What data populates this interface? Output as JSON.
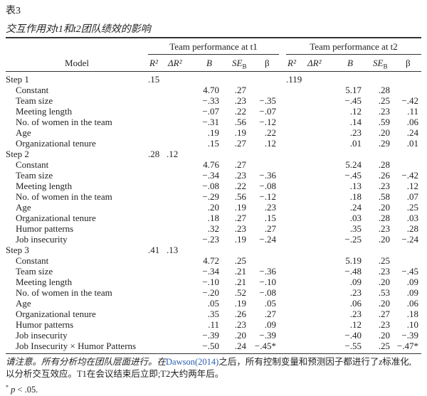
{
  "table_label": "表3",
  "table_title": "交互作用对t1和t2团队绩效的影响",
  "header": {
    "model": "Model",
    "group_t1": "Team performance at t1",
    "group_t2": "Team performance at t2",
    "cols": [
      "R²",
      "ΔR²",
      "B",
      "SE",
      "β"
    ],
    "se_sub": "B"
  },
  "rows": [
    {
      "label": "Step 1",
      "step": true,
      "t1": [
        ".15",
        "",
        "",
        "",
        ""
      ],
      "t2": [
        ".119",
        "",
        "",
        "",
        ""
      ]
    },
    {
      "label": "Constant",
      "t1": [
        "",
        "",
        "4.70",
        ".27",
        ""
      ],
      "t2": [
        "",
        "",
        "5.17",
        ".28",
        ""
      ]
    },
    {
      "label": "Team size",
      "t1": [
        "",
        "",
        "−.33",
        ".23",
        "−.35"
      ],
      "t2": [
        "",
        "",
        "−.45",
        ".25",
        "−.42"
      ]
    },
    {
      "label": "Meeting length",
      "t1": [
        "",
        "",
        "−.07",
        ".22",
        "−.07"
      ],
      "t2": [
        "",
        "",
        ".12",
        ".23",
        ".11"
      ]
    },
    {
      "label": "No. of women in the team",
      "t1": [
        "",
        "",
        "−.31",
        ".56",
        "−.12"
      ],
      "t2": [
        "",
        "",
        ".14",
        ".59",
        ".06"
      ]
    },
    {
      "label": "Age",
      "t1": [
        "",
        "",
        ".19",
        ".19",
        ".22"
      ],
      "t2": [
        "",
        "",
        ".23",
        ".20",
        ".24"
      ]
    },
    {
      "label": "Organizational tenure",
      "t1": [
        "",
        "",
        ".15",
        ".27",
        ".12"
      ],
      "t2": [
        "",
        "",
        ".01",
        ".29",
        ".01"
      ]
    },
    {
      "label": "Step 2",
      "step": true,
      "t1": [
        ".28",
        ".12",
        "",
        "",
        ""
      ],
      "t2": [
        "",
        "",
        "",
        "",
        ""
      ]
    },
    {
      "label": "Constant",
      "t1": [
        "",
        "",
        "4.76",
        ".27",
        ""
      ],
      "t2": [
        "",
        "",
        "5.24",
        ".28",
        ""
      ]
    },
    {
      "label": "Team size",
      "t1": [
        "",
        "",
        "−.34",
        ".23",
        "−.36"
      ],
      "t2": [
        "",
        "",
        "−.45",
        ".26",
        "−.42"
      ]
    },
    {
      "label": "Meeting length",
      "t1": [
        "",
        "",
        "−.08",
        ".22",
        "−.08"
      ],
      "t2": [
        "",
        "",
        ".13",
        ".23",
        ".12"
      ]
    },
    {
      "label": "No. of women in the team",
      "t1": [
        "",
        "",
        "−.29",
        ".56",
        "−.12"
      ],
      "t2": [
        "",
        "",
        ".18",
        ".58",
        ".07"
      ]
    },
    {
      "label": "Age",
      "t1": [
        "",
        "",
        ".20",
        ".19",
        ".23"
      ],
      "t2": [
        "",
        "",
        ".24",
        ".20",
        ".25"
      ]
    },
    {
      "label": "Organizational tenure",
      "t1": [
        "",
        "",
        ".18",
        ".27",
        ".15"
      ],
      "t2": [
        "",
        "",
        ".03",
        ".28",
        ".03"
      ]
    },
    {
      "label": "Humor patterns",
      "t1": [
        "",
        "",
        ".32",
        ".23",
        ".27"
      ],
      "t2": [
        "",
        "",
        ".35",
        ".23",
        ".28"
      ]
    },
    {
      "label": "Job insecurity",
      "t1": [
        "",
        "",
        "−.23",
        ".19",
        "−.24"
      ],
      "t2": [
        "",
        "",
        "−.25",
        ".20",
        "−.24"
      ]
    },
    {
      "label": "Step 3",
      "step": true,
      "t1": [
        ".41",
        ".13",
        "",
        "",
        ""
      ],
      "t2": [
        "",
        "",
        "",
        "",
        ""
      ]
    },
    {
      "label": "Constant",
      "t1": [
        "",
        "",
        "4.72",
        ".25",
        ""
      ],
      "t2": [
        "",
        "",
        "5.19",
        ".25",
        ""
      ]
    },
    {
      "label": "Team size",
      "t1": [
        "",
        "",
        "−.34",
        ".21",
        "−.36"
      ],
      "t2": [
        "",
        "",
        "−.48",
        ".23",
        "−.45"
      ]
    },
    {
      "label": "Meeting length",
      "t1": [
        "",
        "",
        "−.10",
        ".21",
        "−.10"
      ],
      "t2": [
        "",
        "",
        ".09",
        ".20",
        ".09"
      ]
    },
    {
      "label": "No. of women in the team",
      "t1": [
        "",
        "",
        "−.20",
        ".52",
        "−.08"
      ],
      "t2": [
        "",
        "",
        ".23",
        ".53",
        ".09"
      ]
    },
    {
      "label": "Age",
      "t1": [
        "",
        "",
        ".05",
        ".19",
        ".05"
      ],
      "t2": [
        "",
        "",
        ".06",
        ".20",
        ".06"
      ]
    },
    {
      "label": "Organizational tenure",
      "t1": [
        "",
        "",
        ".35",
        ".26",
        ".27"
      ],
      "t2": [
        "",
        "",
        ".23",
        ".27",
        ".18"
      ]
    },
    {
      "label": "Humor patterns",
      "t1": [
        "",
        "",
        ".11",
        ".23",
        ".09"
      ],
      "t2": [
        "",
        "",
        ".12",
        ".23",
        ".10"
      ]
    },
    {
      "label": "Job insecurity",
      "t1": [
        "",
        "",
        "−.39",
        ".20",
        "−.39"
      ],
      "t2": [
        "",
        "",
        "−.40",
        ".20",
        "−.39"
      ]
    },
    {
      "label": "Job Insecurity × Humor Patterns",
      "t1": [
        "",
        "",
        "−.50",
        ".24",
        "−.45*"
      ],
      "t2": [
        "",
        "",
        "−.55",
        ".25",
        "−.47*"
      ]
    }
  ],
  "note": {
    "part1": "请注意。所有分析均在团队层面进行。在",
    "citation": "Dawson(2014)",
    "part2": "之后，所有控制变量和预测因子都进行了",
    "z": "z",
    "part3": "标准化,",
    "line2": "以分析交互效应。T1在会议结束后立即;T2大约两年后。",
    "sig_mark": "*",
    "sig_p": "p",
    "sig_text": " < .05."
  },
  "colors": {
    "citation": "#2a5db0"
  }
}
